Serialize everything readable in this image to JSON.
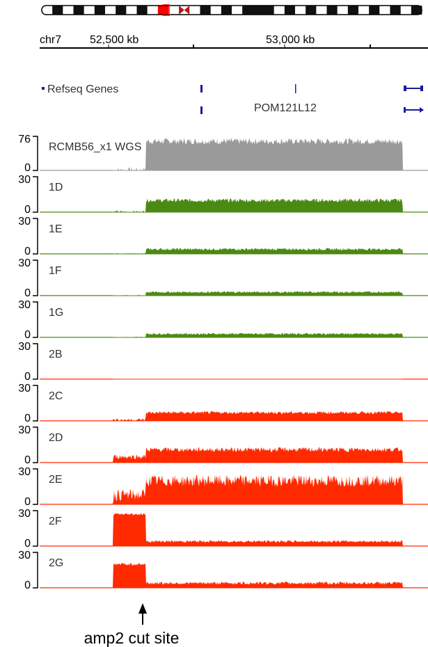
{
  "colors": {
    "wgs": "#9a9a9a",
    "group1": "#4b8a12",
    "group2": "#ff2a00",
    "gene": "#1a1aa0",
    "centromere": "#b01818",
    "highlight": "#ff0000"
  },
  "ideogram": {
    "bands": [
      "w",
      "d",
      "w",
      "d",
      "w",
      "d",
      "w",
      "d",
      "w",
      "d",
      "w",
      "r",
      "w",
      "c",
      "w",
      "d",
      "w",
      "d",
      "w",
      "d",
      "d",
      "d",
      "w",
      "d",
      "w",
      "d",
      "w",
      "d",
      "w",
      "d",
      "w",
      "d",
      "w",
      "d",
      "w",
      "d"
    ]
  },
  "ruler": {
    "chrom": "chr7",
    "tick1": "52,500 kb",
    "tick2": "53,000 kb"
  },
  "genes": {
    "track": "Refseq Genes",
    "name": "POM121L12"
  },
  "annotation": {
    "label": "amp2 cut site"
  },
  "chart_data": {
    "type": "area",
    "x_range_kb": [
      52280,
      53340
    ],
    "region": {
      "start_kb": 52480,
      "cut_kb": 52570,
      "end_kb": 53270
    },
    "tracks": [
      {
        "name": "RCMB56_x1 WGS",
        "ymax": 76,
        "ymin": 0,
        "color_key": "wgs",
        "level_before": 0,
        "level_after": 65,
        "noise": 7
      },
      {
        "name": "1D",
        "ymax": 30,
        "ymin": 0,
        "color_key": "group1",
        "level_before": 0,
        "level_after": 10,
        "noise": 1.6
      },
      {
        "name": "1E",
        "ymax": 30,
        "ymin": 0,
        "color_key": "group1",
        "level_before": 0,
        "level_after": 4,
        "noise": 1
      },
      {
        "name": "1F",
        "ymax": 30,
        "ymin": 0,
        "color_key": "group1",
        "level_before": 0,
        "level_after": 3,
        "noise": 0.8
      },
      {
        "name": "1G",
        "ymax": 30,
        "ymin": 0,
        "color_key": "group1",
        "level_before": 0,
        "level_after": 3,
        "noise": 0.8
      },
      {
        "name": "2B",
        "ymax": 30,
        "ymin": 0,
        "color_key": "group2",
        "level_before": 0,
        "level_after": 0,
        "noise": 0.2
      },
      {
        "name": "2C",
        "ymax": 30,
        "ymin": 0,
        "color_key": "group2",
        "level_before": 1,
        "level_after": 7,
        "noise": 1.2
      },
      {
        "name": "2D",
        "ymax": 30,
        "ymin": 0,
        "color_key": "group2",
        "level_before": 5,
        "level_after": 11,
        "noise": 2
      },
      {
        "name": "2E",
        "ymax": 30,
        "ymin": 0,
        "color_key": "group2",
        "level_before": 8,
        "level_after": 20,
        "noise": 5
      },
      {
        "name": "2F",
        "ymax": 30,
        "ymin": 0,
        "color_key": "group2",
        "level_before": 27,
        "level_after": 4,
        "noise": 1
      },
      {
        "name": "2G",
        "ymax": 30,
        "ymin": 0,
        "color_key": "group2",
        "level_before": 20,
        "level_after": 4,
        "noise": 1.3
      }
    ]
  }
}
